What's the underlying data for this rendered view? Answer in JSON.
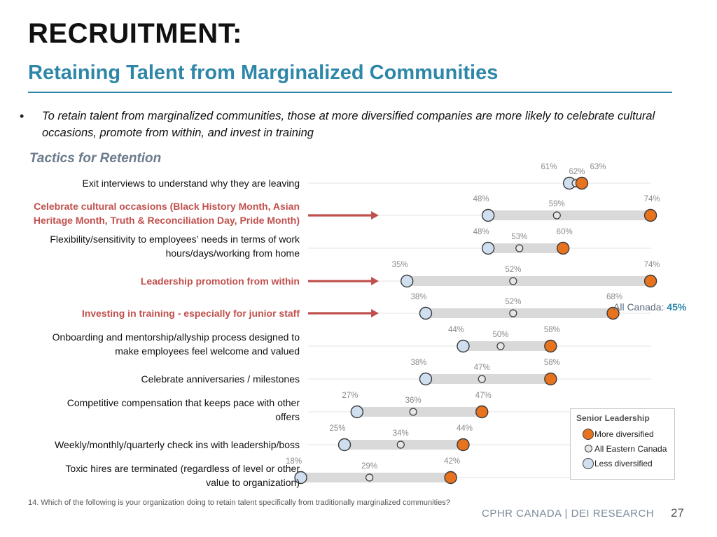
{
  "header": {
    "title": "RECRUITMENT:",
    "subtitle": "Retaining Talent from Marginalized Communities"
  },
  "bullet": "To retain talent from marginalized communities, those at more diversified companies are more likely to celebrate cultural occasions, promote from within, and invest in training",
  "section_title": "Tactics for Retention",
  "all_canada": {
    "label": "All Canada: ",
    "value": "45%"
  },
  "legend": {
    "title": "Senior Leadership",
    "items": [
      {
        "label": "More diversified",
        "color": "#e8731f"
      },
      {
        "label": "All Eastern Canada",
        "color": "#cfcfcf"
      },
      {
        "label": "Less diversified",
        "color": "#cfdff0"
      }
    ]
  },
  "footnote": "14. Which of the following is your organization doing to retain talent specifically from traditionally marginalized communities?",
  "brand": "CPHR CANADA | DEI RESEARCH",
  "page_number": "27",
  "colors": {
    "accent": "#2e87a8",
    "highlight_text": "#c0504d",
    "arrow": "#c0504d",
    "more": "#e8731f",
    "all": "#e6e6e6",
    "less": "#cfdff0",
    "bar": "#d9d9d9"
  },
  "chart_data": {
    "type": "dot",
    "series": [
      {
        "name": "Less diversified",
        "values": [
          61,
          48,
          48,
          35,
          38,
          44,
          38,
          27,
          25,
          18
        ]
      },
      {
        "name": "All Eastern Canada",
        "values": [
          62,
          59,
          53,
          52,
          52,
          50,
          47,
          36,
          34,
          29
        ]
      },
      {
        "name": "More diversified",
        "values": [
          63,
          74,
          60,
          74,
          68,
          58,
          58,
          47,
          44,
          42
        ]
      }
    ],
    "categories": [
      {
        "lines": [
          "Exit interviews to understand why they are leaving"
        ],
        "highlight": false
      },
      {
        "lines": [
          "Celebrate cultural occasions (Black History Month, Asian",
          "Heritage Month, Truth & Reconciliation Day, Pride Month)"
        ],
        "highlight": true
      },
      {
        "lines": [
          "Flexibility/sensitivity to employees’ needs in terms of work",
          "hours/days/working from home"
        ],
        "highlight": false
      },
      {
        "lines": [
          "Leadership promotion from within"
        ],
        "highlight": true
      },
      {
        "lines": [
          "Investing in training - especially for junior staff"
        ],
        "highlight": true
      },
      {
        "lines": [
          "Onboarding and mentorship/allyship process designed to",
          "make employees feel welcome and valued"
        ],
        "highlight": false
      },
      {
        "lines": [
          "Celebrate anniversaries / milestones"
        ],
        "highlight": false
      },
      {
        "lines": [
          "Competitive compensation that keeps pace with other",
          "offers"
        ],
        "highlight": false
      },
      {
        "lines": [
          "Weekly/monthly/quarterly check ins with leadership/boss"
        ],
        "highlight": false
      },
      {
        "lines": [
          "Toxic hires are terminated (regardless of level or other",
          "value to organization)"
        ],
        "highlight": false
      }
    ],
    "value_labels": [
      [
        "61%",
        "62%",
        "63%"
      ],
      [
        "48%",
        "59%",
        "74%"
      ],
      [
        "48%",
        "53%",
        "60%"
      ],
      [
        "35%",
        "52%",
        "74%"
      ],
      [
        "38%",
        "52%",
        "68%"
      ],
      [
        "44%",
        "50%",
        "58%"
      ],
      [
        "38%",
        "47%",
        "58%"
      ],
      [
        "27%",
        "36%",
        "47%"
      ],
      [
        "25%",
        "34%",
        "44%"
      ],
      [
        "18%",
        "29%",
        "42%"
      ]
    ]
  }
}
